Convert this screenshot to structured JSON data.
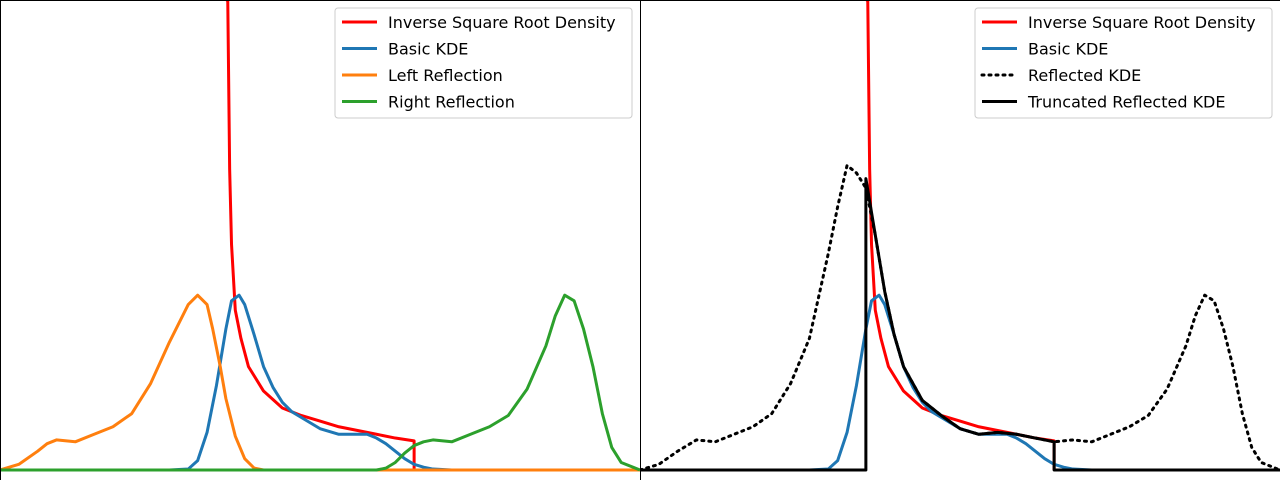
{
  "chart_data": [
    {
      "type": "line",
      "title": "",
      "xlabel": "",
      "ylabel": "",
      "xlim": [
        -1.2,
        2.2
      ],
      "ylim": [
        0,
        2.5
      ],
      "legend": "top-right",
      "series": [
        {
          "name": "Inverse Square Root Density",
          "color": "#ff0000",
          "x": [
            0,
            0.002,
            0.005,
            0.01,
            0.02,
            0.03,
            0.05,
            0.08,
            0.12,
            0.2,
            0.3,
            0.4,
            0.5,
            0.6,
            0.7,
            0.8,
            0.9,
            1.0,
            1.0
          ],
          "y": [
            2.5,
            2.5,
            2.5,
            2.5,
            1.6,
            1.2,
            0.85,
            0.7,
            0.55,
            0.42,
            0.33,
            0.29,
            0.26,
            0.23,
            0.21,
            0.19,
            0.17,
            0.155,
            0
          ]
        },
        {
          "name": "Basic KDE",
          "color": "#1f77b4",
          "x": [
            -1.2,
            -0.3,
            -0.2,
            -0.15,
            -0.1,
            -0.05,
            0,
            0.03,
            0.07,
            0.1,
            0.15,
            0.2,
            0.25,
            0.3,
            0.35,
            0.4,
            0.5,
            0.6,
            0.65,
            0.7,
            0.75,
            0.8,
            0.85,
            0.9,
            0.95,
            1.0,
            1.05,
            1.1,
            1.2,
            1.3,
            2.2
          ],
          "y": [
            0,
            0,
            0.005,
            0.05,
            0.2,
            0.45,
            0.75,
            0.9,
            0.93,
            0.88,
            0.72,
            0.55,
            0.44,
            0.36,
            0.31,
            0.28,
            0.22,
            0.19,
            0.19,
            0.19,
            0.19,
            0.17,
            0.14,
            0.1,
            0.06,
            0.03,
            0.015,
            0.005,
            0,
            0,
            0
          ]
        },
        {
          "name": "Left Reflection",
          "color": "#ff7f0e",
          "x": [
            -1.2,
            -1.1,
            -1.0,
            -0.95,
            -0.9,
            -0.8,
            -0.7,
            -0.6,
            -0.5,
            -0.4,
            -0.3,
            -0.2,
            -0.15,
            -0.1,
            -0.07,
            -0.03,
            0,
            0.05,
            0.1,
            0.15,
            0.2,
            0.3,
            2.2
          ],
          "y": [
            0,
            0.03,
            0.1,
            0.14,
            0.16,
            0.15,
            0.19,
            0.23,
            0.3,
            0.46,
            0.68,
            0.88,
            0.93,
            0.88,
            0.75,
            0.55,
            0.38,
            0.18,
            0.06,
            0.01,
            0,
            0,
            0
          ]
        },
        {
          "name": "Right Reflection",
          "color": "#2ca02c",
          "x": [
            -1.2,
            0.8,
            0.85,
            0.9,
            0.95,
            1.0,
            1.05,
            1.1,
            1.2,
            1.3,
            1.4,
            1.5,
            1.6,
            1.7,
            1.75,
            1.8,
            1.85,
            1.9,
            1.95,
            2.0,
            2.05,
            2.1,
            2.2
          ],
          "y": [
            0,
            0,
            0.01,
            0.04,
            0.09,
            0.13,
            0.15,
            0.16,
            0.15,
            0.19,
            0.23,
            0.29,
            0.43,
            0.66,
            0.82,
            0.93,
            0.9,
            0.75,
            0.55,
            0.3,
            0.12,
            0.04,
            0
          ]
        }
      ]
    },
    {
      "type": "line",
      "title": "",
      "xlabel": "",
      "ylabel": "",
      "xlim": [
        -1.2,
        2.2
      ],
      "ylim": [
        0,
        2.5
      ],
      "legend": "top-right",
      "series": [
        {
          "name": "Inverse Square Root Density",
          "color": "#ff0000",
          "style": "solid",
          "x": [
            0,
            0.002,
            0.005,
            0.01,
            0.02,
            0.03,
            0.05,
            0.08,
            0.12,
            0.2,
            0.3,
            0.4,
            0.5,
            0.6,
            0.7,
            0.8,
            0.9,
            1.0,
            1.0
          ],
          "y": [
            2.5,
            2.5,
            2.5,
            2.5,
            1.6,
            1.2,
            0.85,
            0.7,
            0.55,
            0.42,
            0.33,
            0.29,
            0.26,
            0.23,
            0.21,
            0.19,
            0.17,
            0.155,
            0
          ]
        },
        {
          "name": "Basic KDE",
          "color": "#1f77b4",
          "style": "solid",
          "x": [
            -1.2,
            -0.3,
            -0.2,
            -0.15,
            -0.1,
            -0.05,
            0,
            0.03,
            0.07,
            0.1,
            0.15,
            0.2,
            0.25,
            0.3,
            0.35,
            0.4,
            0.5,
            0.6,
            0.65,
            0.7,
            0.75,
            0.8,
            0.85,
            0.9,
            0.95,
            1.0,
            1.05,
            1.1,
            1.2,
            1.3,
            2.2
          ],
          "y": [
            0,
            0,
            0.005,
            0.05,
            0.2,
            0.45,
            0.75,
            0.9,
            0.93,
            0.88,
            0.72,
            0.55,
            0.44,
            0.36,
            0.31,
            0.28,
            0.22,
            0.19,
            0.19,
            0.19,
            0.19,
            0.17,
            0.14,
            0.1,
            0.06,
            0.03,
            0.015,
            0.005,
            0,
            0,
            0
          ]
        },
        {
          "name": "Reflected KDE",
          "color": "#000000",
          "style": "dotted",
          "x": [
            -1.2,
            -1.1,
            -1.0,
            -0.9,
            -0.8,
            -0.7,
            -0.6,
            -0.5,
            -0.4,
            -0.3,
            -0.2,
            -0.15,
            -0.1,
            -0.05,
            0,
            0.05,
            0.1,
            0.15,
            0.2,
            0.3,
            0.4,
            0.5,
            0.6,
            0.7,
            0.8,
            0.9,
            1.0,
            1.1,
            1.2,
            1.3,
            1.4,
            1.5,
            1.6,
            1.7,
            1.75,
            1.8,
            1.85,
            1.9,
            1.95,
            2.0,
            2.05,
            2.1,
            2.2
          ],
          "y": [
            0,
            0.03,
            0.1,
            0.16,
            0.15,
            0.19,
            0.23,
            0.3,
            0.46,
            0.7,
            1.15,
            1.4,
            1.62,
            1.58,
            1.5,
            1.25,
            0.95,
            0.72,
            0.55,
            0.37,
            0.29,
            0.22,
            0.19,
            0.2,
            0.19,
            0.17,
            0.15,
            0.16,
            0.15,
            0.19,
            0.23,
            0.29,
            0.43,
            0.66,
            0.82,
            0.93,
            0.9,
            0.75,
            0.55,
            0.3,
            0.12,
            0.04,
            0
          ]
        },
        {
          "name": "Truncated Reflected KDE",
          "color": "#000000",
          "style": "solid",
          "x": [
            -1.2,
            0,
            0,
            0.05,
            0.1,
            0.15,
            0.2,
            0.3,
            0.4,
            0.5,
            0.6,
            0.7,
            0.8,
            0.9,
            1.0,
            1.0,
            2.2
          ],
          "y": [
            0,
            0,
            1.55,
            1.25,
            0.95,
            0.72,
            0.55,
            0.37,
            0.29,
            0.22,
            0.19,
            0.2,
            0.19,
            0.17,
            0.15,
            0,
            0
          ]
        }
      ]
    }
  ]
}
